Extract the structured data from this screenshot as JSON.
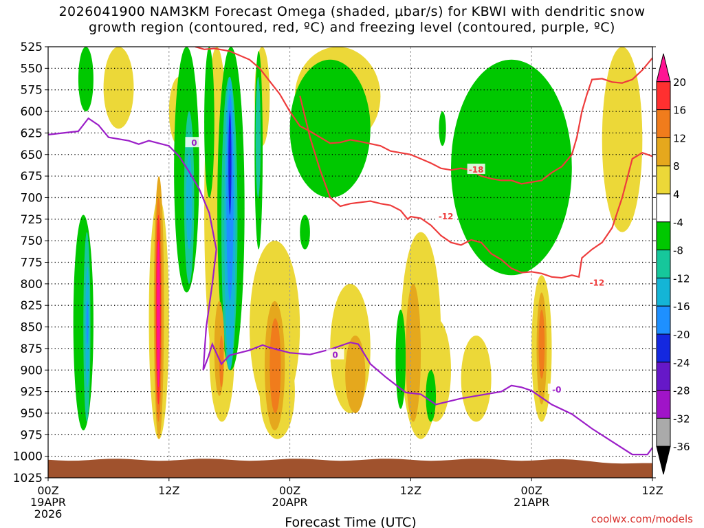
{
  "chart_data": {
    "type": "heatmap",
    "title_line1": "2026041900 NAM3KM Forecast Omega (shaded, μbar/s) for KBWI with dendritic snow",
    "title_line2": "growth region (contoured, red, ºC) and freezing level (contoured, purple, ºC)",
    "xlabel": "Forecast Time (UTC)",
    "ylabel": "",
    "y_ticks": [
      525,
      550,
      575,
      600,
      625,
      650,
      675,
      700,
      725,
      750,
      775,
      800,
      825,
      850,
      875,
      900,
      925,
      950,
      975,
      1000,
      1025
    ],
    "x_range_hours": [
      0,
      60
    ],
    "x_ticks": [
      {
        "hour": 0,
        "lines": [
          "00Z",
          "19APR",
          "2026"
        ]
      },
      {
        "hour": 12,
        "lines": [
          "12Z"
        ]
      },
      {
        "hour": 24,
        "lines": [
          "00Z",
          "20APR"
        ]
      },
      {
        "hour": 36,
        "lines": [
          "12Z"
        ]
      },
      {
        "hour": 48,
        "lines": [
          "00Z",
          "21APR"
        ]
      },
      {
        "hour": 60,
        "lines": [
          "12Z"
        ]
      }
    ],
    "colorbar": {
      "labels": [
        20,
        16,
        12,
        8,
        4,
        -4,
        -8,
        -12,
        -16,
        -20,
        -24,
        -28,
        -32,
        -36
      ],
      "colors": [
        "#ff1493",
        "#ff3030",
        "#f07c1c",
        "#e5a81d",
        "#ecd838",
        "#ffffff",
        "#00c800",
        "#16c79b",
        "#14b5d6",
        "#1e90ff",
        "#1428e0",
        "#6618c8",
        "#a014c8",
        "#aaaaaa",
        "#000000"
      ]
    },
    "contours": [
      {
        "name": "freezing-level",
        "label": "0",
        "color": "#9b1ec8",
        "points": [
          [
            0,
            627
          ],
          [
            3,
            623
          ],
          [
            4,
            608
          ],
          [
            5,
            616
          ],
          [
            6,
            630
          ],
          [
            8,
            634
          ],
          [
            9,
            638
          ],
          [
            10,
            634
          ],
          [
            11,
            637
          ],
          [
            12,
            640
          ],
          [
            13,
            652
          ],
          [
            14,
            670
          ],
          [
            15,
            690
          ],
          [
            16,
            718
          ],
          [
            16.7,
            760
          ],
          [
            16.3,
            800
          ],
          [
            15.7,
            850
          ],
          [
            15.4,
            900
          ],
          [
            15.9,
            885
          ],
          [
            16.3,
            870
          ],
          [
            17.2,
            893
          ],
          [
            18,
            883
          ],
          [
            20,
            877
          ],
          [
            21.3,
            871
          ],
          [
            22,
            874
          ],
          [
            24,
            880
          ],
          [
            26,
            882
          ],
          [
            28,
            876
          ],
          [
            30,
            868
          ],
          [
            30.8,
            870
          ],
          [
            32,
            893
          ],
          [
            33.5,
            908
          ],
          [
            35.5,
            926
          ],
          [
            37,
            928
          ],
          [
            38.5,
            940
          ],
          [
            41,
            933
          ],
          [
            43,
            929
          ],
          [
            45,
            925
          ],
          [
            46,
            918
          ],
          [
            47,
            920
          ],
          [
            48,
            924
          ],
          [
            50,
            940
          ],
          [
            52,
            951
          ],
          [
            54,
            968
          ],
          [
            56,
            983
          ],
          [
            58,
            998
          ],
          [
            59.5,
            998
          ],
          [
            60,
            990
          ]
        ]
      },
      {
        "name": "dendritic-top",
        "label": "-18",
        "color": "#ee3c3c",
        "points": [
          [
            14.6,
            525
          ],
          [
            15.5,
            528
          ],
          [
            16.5,
            527
          ],
          [
            18,
            530
          ],
          [
            20,
            540
          ],
          [
            21,
            550
          ],
          [
            22,
            565
          ],
          [
            23,
            580
          ],
          [
            24,
            600
          ],
          [
            25,
            617
          ],
          [
            26,
            623
          ],
          [
            27,
            630
          ],
          [
            28,
            637
          ],
          [
            29,
            636
          ],
          [
            30,
            633
          ],
          [
            31,
            635
          ],
          [
            33,
            640
          ],
          [
            34,
            646
          ],
          [
            36,
            650
          ],
          [
            37,
            655
          ],
          [
            38,
            660
          ],
          [
            39,
            666
          ],
          [
            40,
            668
          ],
          [
            41,
            666
          ],
          [
            42,
            668
          ],
          [
            43,
            675
          ],
          [
            44,
            678
          ],
          [
            45,
            680
          ],
          [
            46,
            680
          ],
          [
            47,
            684
          ],
          [
            48,
            682
          ],
          [
            49,
            680
          ],
          [
            50,
            671
          ],
          [
            51,
            664
          ],
          [
            52,
            650
          ],
          [
            52.5,
            630
          ],
          [
            53,
            600
          ],
          [
            53.5,
            580
          ],
          [
            54,
            563
          ],
          [
            55,
            562
          ],
          [
            56,
            566
          ],
          [
            57,
            567
          ],
          [
            58,
            563
          ],
          [
            59,
            552
          ],
          [
            60,
            538
          ]
        ]
      },
      {
        "name": "dendritic-bottom",
        "label": "-12",
        "color": "#ee3c3c",
        "points": [
          [
            25,
            582
          ],
          [
            26,
            630
          ],
          [
            27,
            668
          ],
          [
            28,
            700
          ],
          [
            29,
            710
          ],
          [
            30,
            707
          ],
          [
            32,
            704
          ],
          [
            33,
            707
          ],
          [
            34,
            709
          ],
          [
            35,
            715
          ],
          [
            35.7,
            725
          ],
          [
            36,
            722
          ],
          [
            37,
            724
          ],
          [
            38,
            732
          ],
          [
            39,
            744
          ],
          [
            40,
            752
          ],
          [
            41,
            755
          ],
          [
            42,
            749
          ],
          [
            43,
            752
          ],
          [
            44,
            765
          ],
          [
            45,
            772
          ],
          [
            46,
            782
          ],
          [
            47,
            787
          ],
          [
            48,
            786
          ],
          [
            49,
            788
          ],
          [
            50,
            792
          ],
          [
            51,
            793
          ],
          [
            52,
            790
          ],
          [
            52.7,
            792
          ],
          [
            53,
            770
          ],
          [
            54,
            760
          ],
          [
            55,
            752
          ],
          [
            56,
            735
          ],
          [
            57,
            700
          ],
          [
            58,
            655
          ],
          [
            59,
            648
          ],
          [
            60,
            652
          ]
        ]
      }
    ],
    "contour_labels": [
      {
        "text": "0",
        "hour": 14.5,
        "hPa": 636,
        "color": "#9b1ec8"
      },
      {
        "text": "0",
        "hour": 28.5,
        "hPa": 882,
        "color": "#9b1ec8"
      },
      {
        "text": "-0",
        "hour": 50.5,
        "hPa": 922,
        "color": "#9b1ec8"
      },
      {
        "text": "-18",
        "hour": 42.5,
        "hPa": 667,
        "color": "#ee3c3c"
      },
      {
        "text": "-12",
        "hour": 39.5,
        "hPa": 721,
        "color": "#ee3c3c"
      },
      {
        "text": "-12",
        "hour": 54.5,
        "hPa": 798,
        "color": "#ee3c3c"
      }
    ],
    "omega_regions": [
      {
        "level": 4,
        "x": [
          5.5,
          8.5
        ],
        "p": [
          525,
          620
        ]
      },
      {
        "level": 4,
        "x": [
          12,
          14
        ],
        "p": [
          560,
          640
        ]
      },
      {
        "level": 4,
        "x": [
          15.5,
          18
        ],
        "p": [
          525,
          900
        ]
      },
      {
        "level": 4,
        "x": [
          20.5,
          22
        ],
        "p": [
          525,
          640
        ]
      },
      {
        "level": 4,
        "x": [
          24.5,
          33
        ],
        "p": [
          525,
          640
        ]
      },
      {
        "level": 4,
        "x": [
          55,
          59
        ],
        "p": [
          525,
          740
        ]
      },
      {
        "level": -4,
        "x": [
          24,
          32
        ],
        "p": [
          540,
          700
        ]
      },
      {
        "level": -4,
        "x": [
          40,
          52
        ],
        "p": [
          540,
          790
        ]
      },
      {
        "level": 4,
        "x": [
          20,
          25
        ],
        "p": [
          750,
          950
        ]
      },
      {
        "level": 4,
        "x": [
          28,
          32
        ],
        "p": [
          800,
          950
        ]
      },
      {
        "level": 4,
        "x": [
          35,
          39
        ],
        "p": [
          740,
          980
        ]
      },
      {
        "level": 4,
        "x": [
          37,
          40
        ],
        "p": [
          840,
          960
        ]
      },
      {
        "level": 4,
        "x": [
          41,
          44
        ],
        "p": [
          860,
          960
        ]
      },
      {
        "level": 4,
        "x": [
          48,
          50
        ],
        "p": [
          790,
          960
        ]
      },
      {
        "level": 4,
        "x": [
          10,
          12
        ],
        "p": [
          700,
          980
        ]
      },
      {
        "level": 4,
        "x": [
          16,
          18.5
        ],
        "p": [
          800,
          960
        ]
      },
      {
        "level": 4,
        "x": [
          21,
          24.5
        ],
        "p": [
          870,
          980
        ]
      },
      {
        "level": -4,
        "x": [
          2.5,
          4.5
        ],
        "p": [
          720,
          970
        ]
      },
      {
        "level": -4,
        "x": [
          3,
          4.5
        ],
        "p": [
          525,
          600
        ]
      },
      {
        "level": -4,
        "x": [
          12.5,
          15
        ],
        "p": [
          525,
          810
        ]
      },
      {
        "level": -4,
        "x": [
          15.5,
          16.5
        ],
        "p": [
          525,
          700
        ]
      },
      {
        "level": -4,
        "x": [
          16.8,
          19.5
        ],
        "p": [
          525,
          900
        ]
      },
      {
        "level": -4,
        "x": [
          20.5,
          21.3
        ],
        "p": [
          530,
          760
        ]
      },
      {
        "level": -4,
        "x": [
          34.5,
          35.5
        ],
        "p": [
          830,
          945
        ]
      },
      {
        "level": -4,
        "x": [
          37.5,
          38.5
        ],
        "p": [
          900,
          960
        ]
      },
      {
        "level": -4,
        "x": [
          38.8,
          39.5
        ],
        "p": [
          600,
          640
        ]
      },
      {
        "level": -4,
        "x": [
          25,
          26
        ],
        "p": [
          720,
          760
        ]
      },
      {
        "level": -8,
        "x": [
          3.5,
          4.2
        ],
        "p": [
          740,
          960
        ]
      },
      {
        "level": -8,
        "x": [
          13.5,
          14.5
        ],
        "p": [
          600,
          800
        ]
      },
      {
        "level": -8,
        "x": [
          17.2,
          18.8
        ],
        "p": [
          560,
          900
        ]
      },
      {
        "level": -8,
        "x": [
          20.6,
          21.1
        ],
        "p": [
          560,
          700
        ]
      },
      {
        "level": -12,
        "x": [
          17.5,
          18.6
        ],
        "p": [
          560,
          900
        ]
      },
      {
        "level": -12,
        "x": [
          13.7,
          14.3
        ],
        "p": [
          650,
          760
        ]
      },
      {
        "level": -12,
        "x": [
          3.7,
          4.1
        ],
        "p": [
          780,
          920
        ]
      },
      {
        "level": -16,
        "x": [
          17.7,
          18.4
        ],
        "p": [
          580,
          820
        ]
      },
      {
        "level": -16,
        "x": [
          3.8,
          4.0
        ],
        "p": [
          820,
          870
        ]
      },
      {
        "level": -20,
        "x": [
          17.9,
          18.2
        ],
        "p": [
          600,
          720
        ]
      },
      {
        "level": 8,
        "x": [
          10.5,
          11.5
        ],
        "p": [
          675,
          980
        ]
      },
      {
        "level": 8,
        "x": [
          16.5,
          17.5
        ],
        "p": [
          820,
          930
        ]
      },
      {
        "level": 8,
        "x": [
          21.5,
          23.5
        ],
        "p": [
          820,
          970
        ]
      },
      {
        "level": 8,
        "x": [
          29.5,
          31.5
        ],
        "p": [
          860,
          950
        ]
      },
      {
        "level": 8,
        "x": [
          35.5,
          37
        ],
        "p": [
          800,
          960
        ]
      },
      {
        "level": 8,
        "x": [
          48.5,
          49.5
        ],
        "p": [
          810,
          940
        ]
      },
      {
        "level": 12,
        "x": [
          10.6,
          11.3
        ],
        "p": [
          700,
          960
        ]
      },
      {
        "level": 12,
        "x": [
          17,
          17.4
        ],
        "p": [
          860,
          920
        ]
      },
      {
        "level": 12,
        "x": [
          22,
          23.1
        ],
        "p": [
          840,
          950
        ]
      },
      {
        "level": 12,
        "x": [
          48.7,
          49.3
        ],
        "p": [
          830,
          910
        ]
      },
      {
        "level": 16,
        "x": [
          10.7,
          11.2
        ],
        "p": [
          720,
          940
        ]
      },
      {
        "level": 20,
        "x": [
          10.8,
          11.1
        ],
        "p": [
          750,
          920
        ]
      }
    ],
    "ground": {
      "color": "#a0522d"
    }
  },
  "footer": {
    "credit": "coolwx.com/models"
  }
}
